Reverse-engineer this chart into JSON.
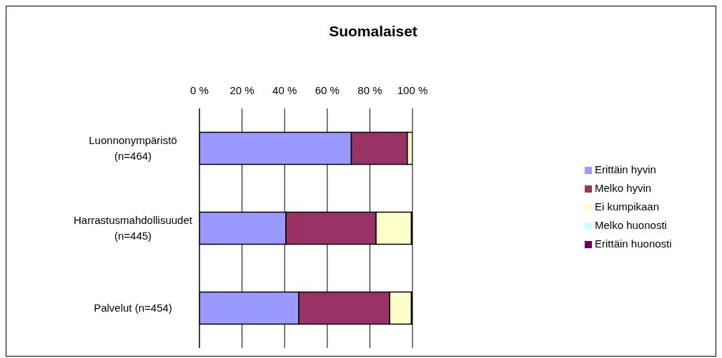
{
  "chart_data": {
    "type": "bar",
    "title": "Suomalaiset",
    "orientation": "horizontal",
    "stacked": true,
    "categories": [
      "Luonnonympäristö (n=464)",
      "Harrastusmahdollisuudet (n=445)",
      "Palvelut (n=454)"
    ],
    "series": [
      {
        "name": "Erittäin hyvin",
        "color": "#9999ff",
        "values": [
          71.3,
          40.6,
          46.6
        ]
      },
      {
        "name": "Melko hyvin",
        "color": "#993366",
        "values": [
          26.3,
          42.3,
          42.7
        ]
      },
      {
        "name": "Ei kumpikaan",
        "color": "#ffffcc",
        "values": [
          2.4,
          16.6,
          10.2
        ]
      },
      {
        "name": "Melko huonosti",
        "color": "#ccffff",
        "values": [
          0,
          0.5,
          0.5
        ]
      },
      {
        "name": "Erittäin huonosti",
        "color": "#660066",
        "values": [
          0,
          0,
          0
        ]
      }
    ],
    "xlim": [
      0,
      100
    ],
    "xticks": [
      {
        "value": 0,
        "label": "0 %"
      },
      {
        "value": 20,
        "label": "20 %"
      },
      {
        "value": 40,
        "label": "40 %"
      },
      {
        "value": 60,
        "label": "60 %"
      },
      {
        "value": 80,
        "label": "80 %"
      },
      {
        "value": 100,
        "label": "100 %"
      }
    ],
    "grid": "x",
    "legend": "right"
  }
}
